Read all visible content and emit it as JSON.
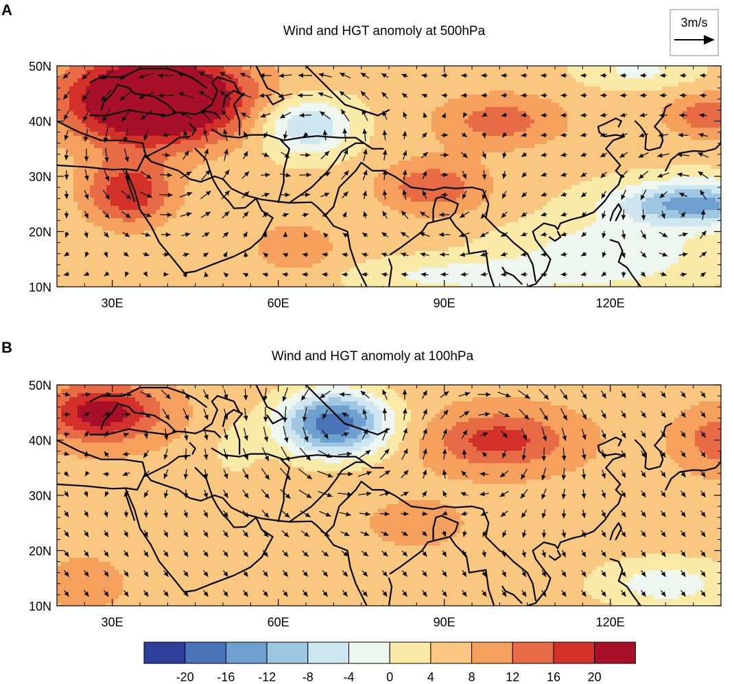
{
  "figure": {
    "reference_vector": {
      "label": "3m/s",
      "magnitude": 3
    }
  },
  "colorbar": {
    "levels": [
      "-20",
      "-16",
      "-12",
      "-8",
      "-4",
      "0",
      "4",
      "8",
      "12",
      "16",
      "20"
    ],
    "colors": [
      "#2e3f99",
      "#4a74b8",
      "#6d9fcf",
      "#9fc7e2",
      "#cde6f0",
      "#eef6f0",
      "#faeaa8",
      "#f9c77f",
      "#f5a05c",
      "#e76b45",
      "#d3302a",
      "#a8102a"
    ]
  },
  "chart_data": [
    {
      "type": "heatmap",
      "panel_label": "A",
      "title": "Wind and HGT anomoly at 500hPa",
      "variable": "HGT anomaly (contour fill) with wind anomaly vectors",
      "x_range": [
        20,
        140
      ],
      "y_range": [
        10,
        50
      ],
      "x_ticks": [
        "30E",
        "60E",
        "90E",
        "120E"
      ],
      "y_ticks": [
        "50N",
        "40N",
        "30N",
        "20N",
        "10N"
      ],
      "x_tick_values": [
        30,
        60,
        90,
        120
      ],
      "y_tick_values": [
        50,
        40,
        30,
        20,
        10
      ],
      "background_value": 5,
      "anomaly_centers": [
        {
          "lon": 38,
          "lat": 44,
          "value": 30,
          "rlon": 16,
          "rlat": 8
        },
        {
          "lon": 33,
          "lat": 27,
          "value": 14,
          "rlon": 8,
          "rlat": 6
        },
        {
          "lon": 65,
          "lat": 39,
          "value": -14,
          "rlon": 8,
          "rlat": 5
        },
        {
          "lon": 88,
          "lat": 28,
          "value": 10,
          "rlon": 10,
          "rlat": 5
        },
        {
          "lon": 100,
          "lat": 40,
          "value": 9,
          "rlon": 12,
          "rlat": 5
        },
        {
          "lon": 135,
          "lat": 25,
          "value": -19,
          "rlon": 14,
          "rlat": 4
        },
        {
          "lon": 120,
          "lat": 16,
          "value": -8,
          "rlon": 18,
          "rlat": 6
        },
        {
          "lon": 138,
          "lat": 41,
          "value": 10,
          "rlon": 8,
          "rlat": 4
        },
        {
          "lon": 125,
          "lat": 49,
          "value": -6,
          "rlon": 10,
          "rlat": 3
        },
        {
          "lon": 95,
          "lat": 12,
          "value": -7,
          "rlon": 20,
          "rlat": 3
        },
        {
          "lon": 63,
          "lat": 17,
          "value": 6,
          "rlon": 8,
          "rlat": 5
        }
      ],
      "circulations": [
        {
          "lon": 40,
          "lat": 37,
          "strength": 2.4,
          "sense": "ccw",
          "r": 14
        },
        {
          "lon": 66,
          "lat": 38,
          "strength": 2.0,
          "sense": "ccw",
          "r": 10
        },
        {
          "lon": 90,
          "lat": 27,
          "strength": 1.2,
          "sense": "cw",
          "r": 9
        },
        {
          "lon": 132,
          "lat": 25,
          "strength": 1.5,
          "sense": "ccw",
          "r": 10
        }
      ],
      "mean_wind": {
        "u": -0.25,
        "v": 0.0
      }
    },
    {
      "type": "heatmap",
      "panel_label": "B",
      "title": "Wind and HGT anomoly at 100hPa",
      "variable": "HGT anomaly (contour fill) with wind anomaly vectors",
      "x_range": [
        20,
        140
      ],
      "y_range": [
        10,
        50
      ],
      "x_ticks": [
        "30E",
        "60E",
        "90E",
        "120E"
      ],
      "y_ticks": [
        "50N",
        "40N",
        "30N",
        "20N",
        "10N"
      ],
      "x_tick_values": [
        30,
        60,
        90,
        120
      ],
      "y_tick_values": [
        50,
        40,
        30,
        20,
        10
      ],
      "background_value": 7,
      "anomaly_centers": [
        {
          "lon": 28,
          "lat": 45,
          "value": 16,
          "rlon": 10,
          "rlat": 5
        },
        {
          "lon": 70,
          "lat": 43,
          "value": -26,
          "rlon": 10,
          "rlat": 6
        },
        {
          "lon": 100,
          "lat": 40,
          "value": 11,
          "rlon": 12,
          "rlat": 5
        },
        {
          "lon": 140,
          "lat": 40,
          "value": 8,
          "rlon": 7,
          "rlat": 5
        },
        {
          "lon": 130,
          "lat": 14,
          "value": -9,
          "rlon": 14,
          "rlat": 5
        },
        {
          "lon": 85,
          "lat": 25,
          "value": 3,
          "rlon": 8,
          "rlat": 4
        },
        {
          "lon": 52,
          "lat": 38,
          "value": -4,
          "rlon": 5,
          "rlat": 6
        },
        {
          "lon": 25,
          "lat": 14,
          "value": 4,
          "rlon": 6,
          "rlat": 4
        }
      ],
      "circulations": [
        {
          "lon": 70,
          "lat": 42,
          "strength": 2.2,
          "sense": "ccw",
          "r": 12
        },
        {
          "lon": 100,
          "lat": 40,
          "strength": 1.6,
          "sense": "cw",
          "r": 12
        },
        {
          "lon": 35,
          "lat": 42,
          "strength": 1.2,
          "sense": "cw",
          "r": 10
        }
      ],
      "mean_wind": {
        "u": 0.3,
        "v": -0.4
      }
    }
  ]
}
